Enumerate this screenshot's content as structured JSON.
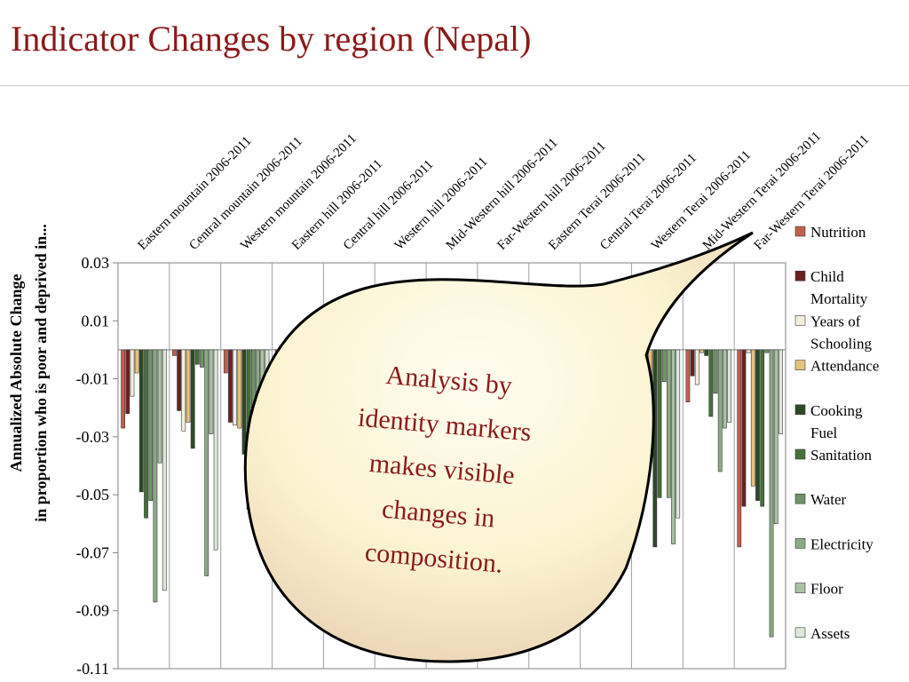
{
  "page": {
    "title": "Indicator Changes by region (Nepal)"
  },
  "callout": {
    "lines": [
      "Analysis by",
      "identity markers",
      "makes visible",
      "changes in",
      "composition."
    ]
  },
  "chart_data": {
    "type": "bar",
    "title": "",
    "xlabel": "",
    "ylabel_lines": [
      "Annualized Absolute Change",
      "in proportion who is poor and deprived in..."
    ],
    "ylim": [
      -0.11,
      0.03
    ],
    "yticks": [
      0.03,
      0.01,
      -0.01,
      -0.03,
      -0.05,
      -0.07,
      -0.09,
      -0.11
    ],
    "ytick_labels": [
      "0.03",
      "0.01",
      "-0.01",
      "-0.03",
      "-0.05",
      "-0.07",
      "-0.09",
      "-0.11"
    ],
    "grid": "vertical separators between categories",
    "legend_position": "right",
    "categories": [
      "Eastern mountain 2006-2011",
      "Central mountain 2006-2011",
      "Western mountain 2006-2011",
      "Eastern hill 2006-2011",
      "Central hill 2006-2011",
      "Western hill 2006-2011",
      "Mid-Western hill 2006-2011",
      "Far-Western hill 2006-2011",
      "Eastern Terai 2006-2011",
      "Central Terai 2006-2011",
      "Western Terai 2006-2011",
      "Mid-Western Terai 2006-2011",
      "Far-Western Terai 2006-2011"
    ],
    "series": [
      {
        "name": "Nutrition",
        "color": "#c0604d",
        "values": [
          -0.027,
          -0.002,
          -0.008,
          -0.006,
          -0.005,
          -0.004,
          -0.006,
          -0.005,
          -0.003,
          -0.004,
          -0.005,
          -0.018,
          -0.068
        ]
      },
      {
        "name": "Child Mortality",
        "color": "#6b2020",
        "values": [
          -0.022,
          -0.021,
          -0.025,
          -0.02,
          -0.018,
          -0.016,
          -0.022,
          -0.02,
          -0.03,
          -0.04,
          -0.01,
          -0.009,
          -0.054
        ]
      },
      {
        "name": "Years of Schooling",
        "color": "#f3eddc",
        "values": [
          -0.016,
          -0.028,
          -0.026,
          -0.015,
          -0.012,
          -0.01,
          -0.015,
          -0.018,
          -0.014,
          -0.014,
          -0.012,
          -0.012,
          -0.001
        ]
      },
      {
        "name": "Attendance",
        "color": "#e6c27e",
        "values": [
          -0.008,
          -0.025,
          -0.027,
          -0.02,
          -0.015,
          -0.012,
          -0.02,
          -0.022,
          -0.016,
          -0.025,
          -0.01,
          -0.001,
          -0.047
        ]
      },
      {
        "name": "Cooking Fuel",
        "color": "#2c4a24",
        "values": [
          -0.049,
          -0.034,
          -0.036,
          -0.03,
          -0.032,
          -0.028,
          -0.04,
          -0.035,
          -0.03,
          -0.035,
          -0.068,
          -0.002,
          -0.052
        ]
      },
      {
        "name": "Sanitation",
        "color": "#44703a",
        "values": [
          -0.058,
          -0.005,
          -0.055,
          -0.04,
          -0.038,
          -0.03,
          -0.042,
          -0.045,
          -0.04,
          -0.03,
          -0.051,
          -0.023,
          -0.054
        ]
      },
      {
        "name": "Water",
        "color": "#6f9467",
        "values": [
          -0.052,
          -0.006,
          -0.03,
          -0.025,
          -0.022,
          -0.02,
          -0.025,
          -0.028,
          -0.022,
          -0.02,
          -0.011,
          -0.015,
          -0.001
        ]
      },
      {
        "name": "Electricity",
        "color": "#8aaa84",
        "values": [
          -0.087,
          -0.078,
          -0.06,
          -0.05,
          -0.045,
          -0.04,
          -0.055,
          -0.06,
          -0.05,
          -0.045,
          -0.051,
          -0.042,
          -0.099
        ]
      },
      {
        "name": "Floor",
        "color": "#a9c2a3",
        "values": [
          -0.039,
          -0.029,
          -0.04,
          -0.035,
          -0.03,
          -0.028,
          -0.035,
          -0.04,
          -0.03,
          -0.028,
          -0.067,
          -0.027,
          -0.06
        ]
      },
      {
        "name": "Assets",
        "color": "#dbe7d7",
        "values": [
          -0.083,
          -0.069,
          -0.069,
          -0.06,
          -0.055,
          -0.05,
          -0.06,
          -0.065,
          -0.069,
          -0.06,
          -0.058,
          -0.025,
          -0.029
        ]
      }
    ],
    "legend_lines": [
      [
        "Nutrition"
      ],
      [
        "Child",
        "Mortality"
      ],
      [
        "Years of",
        "Schooling"
      ],
      [
        "Attendance"
      ],
      [
        "Cooking",
        "Fuel"
      ],
      [
        "Sanitation"
      ],
      [
        "Water"
      ],
      [
        "Electricity"
      ],
      [
        "Floor"
      ],
      [
        "Assets"
      ]
    ]
  }
}
